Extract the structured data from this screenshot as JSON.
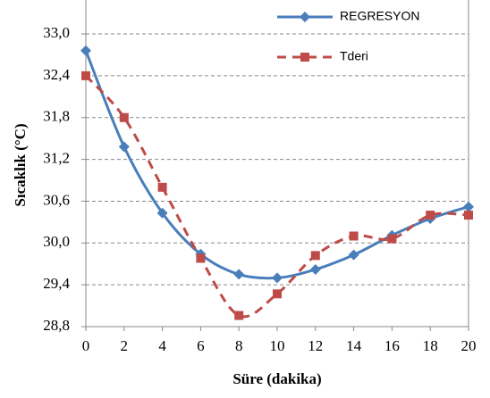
{
  "chart_data": {
    "type": "line",
    "x_label": "Süre (dakika)",
    "y_label": "Sıcaklık (°C)",
    "x": [
      0,
      2,
      4,
      6,
      8,
      10,
      12,
      14,
      16,
      18,
      20
    ],
    "series": [
      {
        "name": "REGRESYON",
        "color": "#4a7ebb",
        "marker": "diamond",
        "dash": false,
        "values": [
          32.76,
          31.38,
          30.43,
          29.84,
          29.55,
          29.5,
          29.62,
          29.83,
          30.11,
          30.35,
          30.52
        ]
      },
      {
        "name": "Tderi",
        "color": "#be4b48",
        "marker": "square",
        "dash": true,
        "values": [
          32.4,
          31.8,
          30.8,
          29.78,
          28.96,
          29.27,
          29.82,
          30.1,
          30.06,
          30.4,
          30.4
        ]
      }
    ],
    "xlim": [
      0,
      20
    ],
    "xticks": [
      0,
      2,
      4,
      6,
      8,
      10,
      12,
      14,
      16,
      18,
      20
    ],
    "ylim": [
      28.8,
      33.5
    ],
    "yticks": [
      {
        "value": 28.8,
        "label": "28,8"
      },
      {
        "value": 29.4,
        "label": "29,4"
      },
      {
        "value": 30.0,
        "label": "30,0"
      },
      {
        "value": 30.6,
        "label": "30,6"
      },
      {
        "value": 31.2,
        "label": "31,2"
      },
      {
        "value": 31.8,
        "label": "31,8"
      },
      {
        "value": 32.4,
        "label": "32,4"
      },
      {
        "value": 33.0,
        "label": "33,0"
      }
    ],
    "grid": true,
    "legend": "top-right"
  }
}
